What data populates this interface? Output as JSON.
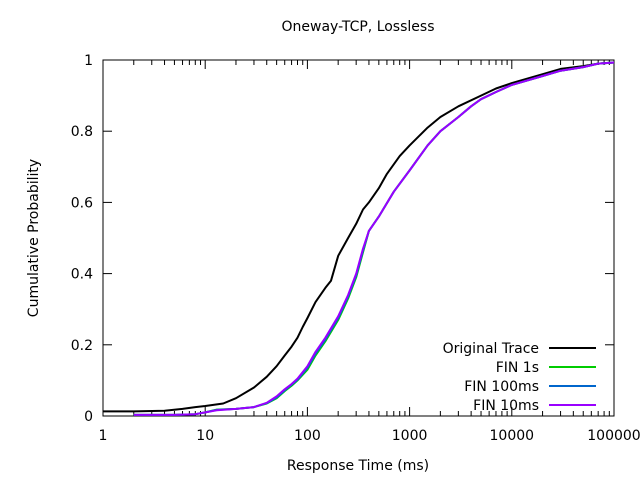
{
  "chart_data": {
    "type": "line",
    "title": "Oneway-TCP, Lossless",
    "xlabel": "Response Time (ms)",
    "ylabel": "Cumulative Probability",
    "x_scale": "log",
    "xlim": [
      1,
      100000
    ],
    "ylim": [
      0,
      1
    ],
    "x_ticks": [
      1,
      10,
      100,
      1000,
      10000,
      100000
    ],
    "x_tick_labels": [
      "1",
      "10",
      "100",
      "1000",
      "10000",
      "100000"
    ],
    "y_ticks": [
      0,
      0.2,
      0.4,
      0.6,
      0.8,
      1
    ],
    "y_tick_labels": [
      "0",
      "0.2",
      "0.4",
      "0.6",
      "0.8",
      "1"
    ],
    "grid": false,
    "legend_position": "bottom-right",
    "series": [
      {
        "name": "Original Trace",
        "color": "#000000",
        "points": [
          [
            1,
            0.013
          ],
          [
            2,
            0.013
          ],
          [
            4,
            0.015
          ],
          [
            6,
            0.02
          ],
          [
            8,
            0.025
          ],
          [
            10,
            0.028
          ],
          [
            15,
            0.035
          ],
          [
            20,
            0.05
          ],
          [
            30,
            0.08
          ],
          [
            40,
            0.11
          ],
          [
            50,
            0.14
          ],
          [
            60,
            0.17
          ],
          [
            70,
            0.195
          ],
          [
            80,
            0.22
          ],
          [
            90,
            0.25
          ],
          [
            100,
            0.275
          ],
          [
            120,
            0.32
          ],
          [
            150,
            0.36
          ],
          [
            170,
            0.38
          ],
          [
            200,
            0.45
          ],
          [
            250,
            0.5
          ],
          [
            300,
            0.54
          ],
          [
            350,
            0.58
          ],
          [
            400,
            0.6
          ],
          [
            500,
            0.64
          ],
          [
            600,
            0.68
          ],
          [
            800,
            0.73
          ],
          [
            1000,
            0.76
          ],
          [
            1500,
            0.81
          ],
          [
            2000,
            0.84
          ],
          [
            3000,
            0.87
          ],
          [
            5000,
            0.9
          ],
          [
            7000,
            0.92
          ],
          [
            10000,
            0.935
          ],
          [
            20000,
            0.96
          ],
          [
            30000,
            0.975
          ],
          [
            50000,
            0.983
          ],
          [
            70000,
            0.99
          ],
          [
            100000,
            0.993
          ]
        ]
      },
      {
        "name": "FIN 1s",
        "color": "#00cc00",
        "points": [
          [
            2,
            0.003
          ],
          [
            5,
            0.003
          ],
          [
            8,
            0.005
          ],
          [
            10,
            0.01
          ],
          [
            13,
            0.018
          ],
          [
            20,
            0.02
          ],
          [
            30,
            0.025
          ],
          [
            40,
            0.035
          ],
          [
            50,
            0.05
          ],
          [
            60,
            0.07
          ],
          [
            70,
            0.085
          ],
          [
            80,
            0.1
          ],
          [
            100,
            0.13
          ],
          [
            120,
            0.17
          ],
          [
            150,
            0.21
          ],
          [
            200,
            0.27
          ],
          [
            250,
            0.33
          ],
          [
            300,
            0.39
          ],
          [
            350,
            0.46
          ],
          [
            400,
            0.52
          ],
          [
            500,
            0.56
          ],
          [
            700,
            0.63
          ],
          [
            1000,
            0.69
          ],
          [
            1500,
            0.76
          ],
          [
            2000,
            0.8
          ],
          [
            3000,
            0.84
          ],
          [
            4000,
            0.87
          ],
          [
            5000,
            0.89
          ],
          [
            7000,
            0.91
          ],
          [
            10000,
            0.93
          ],
          [
            20000,
            0.955
          ],
          [
            30000,
            0.97
          ],
          [
            50000,
            0.98
          ],
          [
            70000,
            0.99
          ],
          [
            100000,
            0.993
          ]
        ]
      },
      {
        "name": "FIN 100ms",
        "color": "#0066cc",
        "points": [
          [
            2,
            0.003
          ],
          [
            5,
            0.003
          ],
          [
            8,
            0.005
          ],
          [
            10,
            0.01
          ],
          [
            13,
            0.017
          ],
          [
            20,
            0.02
          ],
          [
            30,
            0.025
          ],
          [
            40,
            0.036
          ],
          [
            50,
            0.052
          ],
          [
            60,
            0.072
          ],
          [
            70,
            0.088
          ],
          [
            80,
            0.102
          ],
          [
            100,
            0.135
          ],
          [
            120,
            0.175
          ],
          [
            150,
            0.215
          ],
          [
            200,
            0.275
          ],
          [
            250,
            0.335
          ],
          [
            300,
            0.395
          ],
          [
            350,
            0.465
          ],
          [
            400,
            0.52
          ],
          [
            500,
            0.56
          ],
          [
            700,
            0.63
          ],
          [
            1000,
            0.69
          ],
          [
            1500,
            0.76
          ],
          [
            2000,
            0.8
          ],
          [
            3000,
            0.84
          ],
          [
            4000,
            0.87
          ],
          [
            5000,
            0.89
          ],
          [
            7000,
            0.91
          ],
          [
            10000,
            0.93
          ],
          [
            20000,
            0.955
          ],
          [
            30000,
            0.97
          ],
          [
            50000,
            0.98
          ],
          [
            70000,
            0.99
          ],
          [
            100000,
            0.993
          ]
        ]
      },
      {
        "name": "FIN 10ms",
        "color": "#9900ff",
        "points": [
          [
            2,
            0.003
          ],
          [
            5,
            0.003
          ],
          [
            8,
            0.005
          ],
          [
            10,
            0.01
          ],
          [
            13,
            0.016
          ],
          [
            20,
            0.02
          ],
          [
            30,
            0.025
          ],
          [
            40,
            0.037
          ],
          [
            50,
            0.055
          ],
          [
            60,
            0.075
          ],
          [
            70,
            0.09
          ],
          [
            80,
            0.105
          ],
          [
            100,
            0.14
          ],
          [
            120,
            0.18
          ],
          [
            150,
            0.22
          ],
          [
            200,
            0.28
          ],
          [
            250,
            0.34
          ],
          [
            300,
            0.4
          ],
          [
            350,
            0.47
          ],
          [
            400,
            0.52
          ],
          [
            500,
            0.56
          ],
          [
            700,
            0.63
          ],
          [
            1000,
            0.69
          ],
          [
            1500,
            0.76
          ],
          [
            2000,
            0.8
          ],
          [
            3000,
            0.84
          ],
          [
            4000,
            0.87
          ],
          [
            5000,
            0.89
          ],
          [
            7000,
            0.91
          ],
          [
            10000,
            0.93
          ],
          [
            20000,
            0.955
          ],
          [
            30000,
            0.97
          ],
          [
            50000,
            0.98
          ],
          [
            70000,
            0.99
          ],
          [
            100000,
            0.993
          ]
        ]
      }
    ]
  }
}
